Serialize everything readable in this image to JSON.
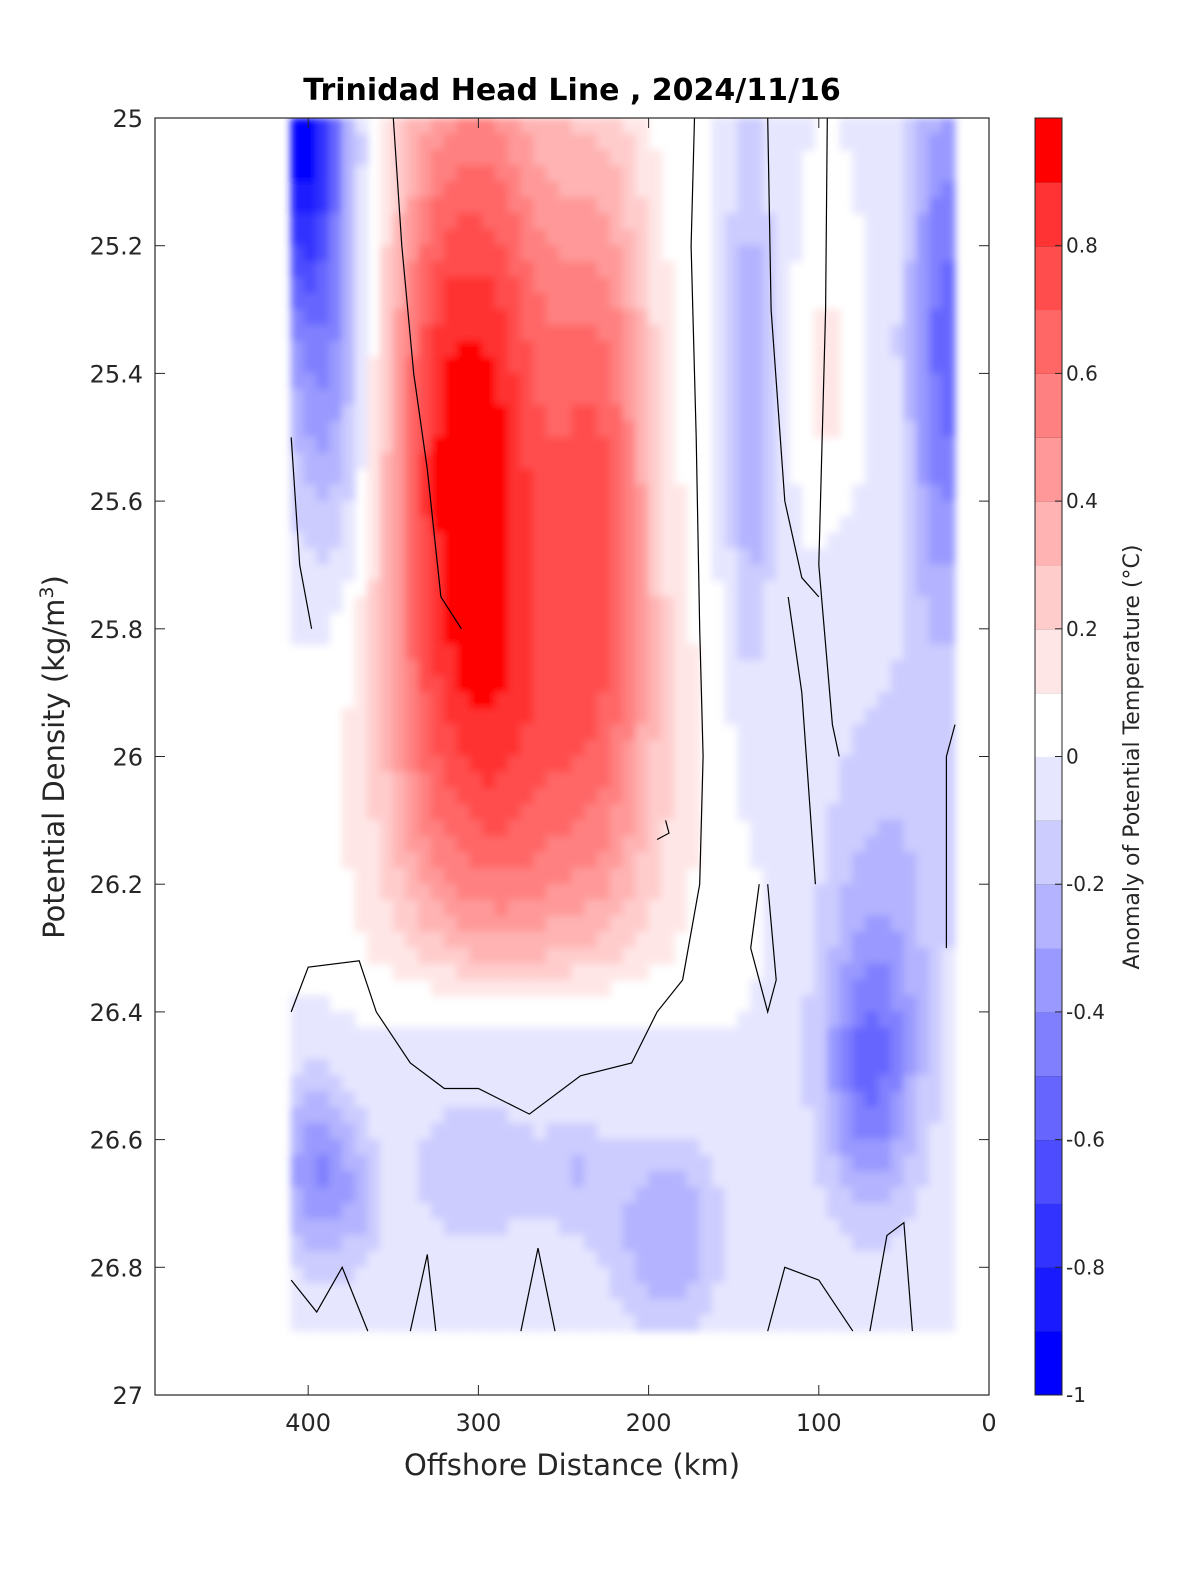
{
  "chart_data": {
    "type": "heatmap",
    "title": "Trinidad Head Line , 2024/11/16",
    "xlabel": "Offshore Distance (km)",
    "ylabel_main": "Potential Density (kg/m",
    "ylabel_sup": "3",
    "ylabel_end": ")",
    "colorbar_label": "Anomaly of Potential Temperature (°C)",
    "xlim": [
      490,
      0
    ],
    "x_reversed": true,
    "ylim": [
      25,
      27
    ],
    "y_reversed": true,
    "xticks": [
      400,
      300,
      200,
      100,
      0
    ],
    "xtick_labels": [
      "400",
      "300",
      "200",
      "100",
      "0"
    ],
    "yticks": [
      25,
      25.2,
      25.4,
      25.6,
      25.8,
      26,
      26.2,
      26.4,
      26.6,
      26.8,
      27
    ],
    "ytick_labels": [
      "25",
      "25.2",
      "25.4",
      "25.6",
      "25.8",
      "26",
      "26.2",
      "26.4",
      "26.6",
      "26.8",
      "27"
    ],
    "clim": [
      -1,
      1
    ],
    "colorbar_ticks": [
      -1,
      -0.8,
      -0.6,
      -0.4,
      -0.2,
      0,
      0.2,
      0.4,
      0.6,
      0.8
    ],
    "colorbar_tick_labels": [
      "-1",
      "-0.8",
      "-0.6",
      "-0.4",
      "-0.2",
      "0",
      "0.2",
      "0.4",
      "0.6",
      "0.8"
    ],
    "color_levels": [
      {
        "from": -1.0,
        "to": -0.9,
        "color": "#0000ff"
      },
      {
        "from": -0.9,
        "to": -0.8,
        "color": "#1a1aff"
      },
      {
        "from": -0.8,
        "to": -0.7,
        "color": "#3333ff"
      },
      {
        "from": -0.7,
        "to": -0.6,
        "color": "#4d4dff"
      },
      {
        "from": -0.6,
        "to": -0.5,
        "color": "#6666ff"
      },
      {
        "from": -0.5,
        "to": -0.4,
        "color": "#8080ff"
      },
      {
        "from": -0.4,
        "to": -0.3,
        "color": "#9999ff"
      },
      {
        "from": -0.3,
        "to": -0.2,
        "color": "#b3b3ff"
      },
      {
        "from": -0.2,
        "to": -0.1,
        "color": "#ccccff"
      },
      {
        "from": -0.1,
        "to": 0.0,
        "color": "#e6e6ff"
      },
      {
        "from": 0.0,
        "to": 0.1,
        "color": "#ffffff"
      },
      {
        "from": 0.1,
        "to": 0.2,
        "color": "#ffe6e6"
      },
      {
        "from": 0.2,
        "to": 0.3,
        "color": "#ffcccc"
      },
      {
        "from": 0.3,
        "to": 0.4,
        "color": "#ffb3b3"
      },
      {
        "from": 0.4,
        "to": 0.5,
        "color": "#ff9999"
      },
      {
        "from": 0.5,
        "to": 0.6,
        "color": "#ff8080"
      },
      {
        "from": 0.6,
        "to": 0.7,
        "color": "#ff6666"
      },
      {
        "from": 0.7,
        "to": 0.8,
        "color": "#ff4d4d"
      },
      {
        "from": 0.8,
        "to": 0.9,
        "color": "#ff3333"
      },
      {
        "from": 0.9,
        "to": 1.0,
        "color": "#ff0000"
      }
    ],
    "data_extent": {
      "x": [
        20,
        410
      ],
      "y": [
        25,
        26.9
      ]
    },
    "warm_cores": [
      {
        "x": 290,
        "y": 25.52,
        "value": 0.85
      },
      {
        "x": 228,
        "y": 25.55,
        "value": 0.72
      }
    ],
    "warm_tongue_base": {
      "x": 270,
      "y": 26.4
    },
    "cold_cores": [
      {
        "x": 400,
        "y": 25.05,
        "value": -0.9
      },
      {
        "x": 25,
        "y": 25.35,
        "value": -0.55
      },
      {
        "x": 70,
        "y": 26.5,
        "value": -0.45
      },
      {
        "x": 395,
        "y": 26.65,
        "value": -0.4
      },
      {
        "x": 140,
        "y": 25.45,
        "value": -0.3
      },
      {
        "x": 190,
        "y": 26.8,
        "value": -0.35
      }
    ],
    "small_warm_patch": {
      "x": 95,
      "y": 25.4,
      "value": 0.15
    }
  }
}
